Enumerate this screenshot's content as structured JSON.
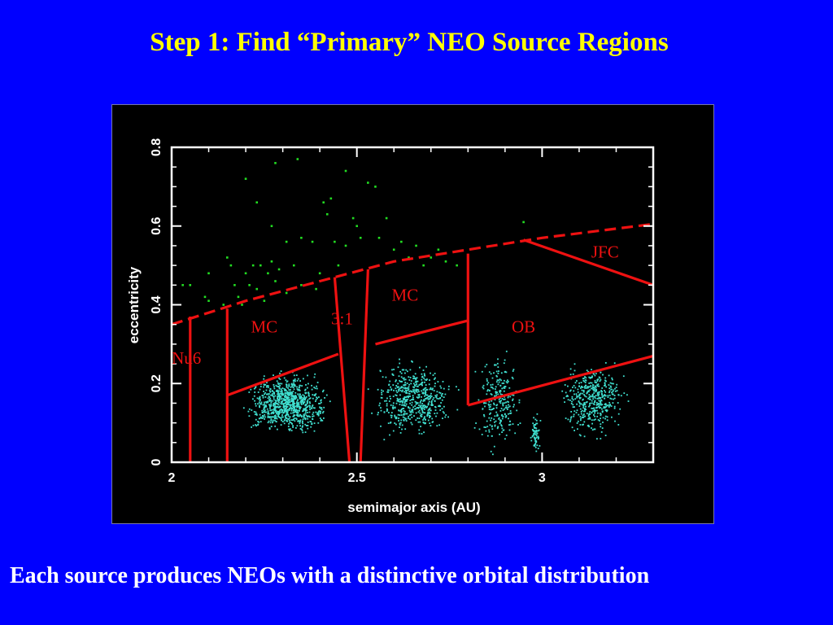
{
  "slide": {
    "title": "Step 1: Find “Primary” NEO Source Regions",
    "caption": "Each source produces NEOs with a distinctive orbital distribution"
  },
  "chart_data": {
    "type": "scatter",
    "xlabel": "semimajor axis (AU)",
    "ylabel": "eccentricity",
    "xlim": [
      2.0,
      3.3
    ],
    "ylim": [
      0,
      0.8
    ],
    "x_ticks": [
      2,
      2.5,
      3
    ],
    "x_tick_labels": [
      "2",
      "2.5",
      "3"
    ],
    "y_ticks": [
      0,
      0.2,
      0.4,
      0.6,
      0.8
    ],
    "y_tick_labels": [
      "0",
      "0.2",
      "0.4",
      "0.6",
      "0.8"
    ],
    "grid": false,
    "colors": {
      "main_belt_points": "#40e0d0",
      "neo_points": "#22dd22",
      "boundaries": "#ee1111",
      "region_labels": "#ee1111",
      "axes": "#ffffff"
    },
    "series": [
      {
        "color": "#40e0d0",
        "description_points": "main belt asteroids (dense cloud)",
        "clusters": [
          {
            "x": [
              2.16,
              2.46
            ],
            "y": [
              0.06,
              0.24
            ],
            "n": 900
          },
          {
            "x": [
              2.5,
              2.8
            ],
            "y": [
              0.05,
              0.28
            ],
            "n": 550
          },
          {
            "x": [
              2.8,
              2.96
            ],
            "y": [
              0.0,
              0.32
            ],
            "n": 250
          },
          {
            "x": [
              2.96,
              3.0
            ],
            "y": [
              0.02,
              0.13
            ],
            "n": 70
          },
          {
            "x": [
              3.02,
              3.25
            ],
            "y": [
              0.05,
              0.28
            ],
            "n": 450
          }
        ]
      },
      {
        "color": "#22dd22",
        "points": [
          [
            2.03,
            0.45
          ],
          [
            2.05,
            0.45
          ],
          [
            2.09,
            0.42
          ],
          [
            2.1,
            0.48
          ],
          [
            2.1,
            0.41
          ],
          [
            2.14,
            0.4
          ],
          [
            2.15,
            0.52
          ],
          [
            2.16,
            0.5
          ],
          [
            2.17,
            0.45
          ],
          [
            2.18,
            0.42
          ],
          [
            2.19,
            0.4
          ],
          [
            2.2,
            0.72
          ],
          [
            2.2,
            0.48
          ],
          [
            2.21,
            0.45
          ],
          [
            2.22,
            0.5
          ],
          [
            2.23,
            0.66
          ],
          [
            2.23,
            0.44
          ],
          [
            2.24,
            0.5
          ],
          [
            2.25,
            0.41
          ],
          [
            2.26,
            0.48
          ],
          [
            2.27,
            0.6
          ],
          [
            2.27,
            0.51
          ],
          [
            2.28,
            0.46
          ],
          [
            2.28,
            0.76
          ],
          [
            2.29,
            0.49
          ],
          [
            2.31,
            0.43
          ],
          [
            2.31,
            0.56
          ],
          [
            2.33,
            0.5
          ],
          [
            2.34,
            0.77
          ],
          [
            2.35,
            0.57
          ],
          [
            2.35,
            0.45
          ],
          [
            2.38,
            0.56
          ],
          [
            2.39,
            0.44
          ],
          [
            2.4,
            0.48
          ],
          [
            2.41,
            0.66
          ],
          [
            2.42,
            0.63
          ],
          [
            2.43,
            0.67
          ],
          [
            2.44,
            0.56
          ],
          [
            2.45,
            0.5
          ],
          [
            2.47,
            0.74
          ],
          [
            2.47,
            0.55
          ],
          [
            2.49,
            0.62
          ],
          [
            2.5,
            0.6
          ],
          [
            2.51,
            0.57
          ],
          [
            2.53,
            0.71
          ],
          [
            2.55,
            0.7
          ],
          [
            2.56,
            0.57
          ],
          [
            2.58,
            0.62
          ],
          [
            2.6,
            0.54
          ],
          [
            2.62,
            0.56
          ],
          [
            2.64,
            0.52
          ],
          [
            2.66,
            0.55
          ],
          [
            2.68,
            0.5
          ],
          [
            2.7,
            0.52
          ],
          [
            2.72,
            0.54
          ],
          [
            2.74,
            0.51
          ],
          [
            2.77,
            0.5
          ],
          [
            2.95,
            0.61
          ]
        ]
      }
    ],
    "region_boundaries": [
      {
        "name": "neo_limit_dashed",
        "style": "dashed",
        "points": [
          [
            2.0,
            0.35
          ],
          [
            2.2,
            0.41
          ],
          [
            2.4,
            0.46
          ],
          [
            2.6,
            0.51
          ],
          [
            2.8,
            0.54
          ],
          [
            3.0,
            0.57
          ],
          [
            3.3,
            0.605
          ]
        ]
      },
      {
        "points": [
          [
            2.05,
            0
          ],
          [
            2.05,
            0.37
          ]
        ]
      },
      {
        "points": [
          [
            2.15,
            0
          ],
          [
            2.15,
            0.39
          ]
        ]
      },
      {
        "points": [
          [
            2.15,
            0.17
          ],
          [
            2.45,
            0.275
          ]
        ]
      },
      {
        "points": [
          [
            2.44,
            0.47
          ],
          [
            2.48,
            0
          ]
        ]
      },
      {
        "points": [
          [
            2.53,
            0.49
          ],
          [
            2.51,
            0
          ]
        ]
      },
      {
        "points": [
          [
            2.55,
            0.3
          ],
          [
            2.8,
            0.36
          ]
        ]
      },
      {
        "points": [
          [
            2.8,
            0.53
          ],
          [
            2.8,
            0.145
          ]
        ]
      },
      {
        "points": [
          [
            2.8,
            0.145
          ],
          [
            3.3,
            0.27
          ]
        ]
      },
      {
        "points": [
          [
            2.95,
            0.565
          ],
          [
            3.3,
            0.45
          ]
        ]
      }
    ],
    "annotations": [
      {
        "text": "JFC",
        "x": 3.17,
        "y": 0.52
      },
      {
        "text": "MC",
        "x": 2.63,
        "y": 0.41
      },
      {
        "text": "3:1",
        "x": 2.46,
        "y": 0.35
      },
      {
        "text": "MC",
        "x": 2.25,
        "y": 0.33
      },
      {
        "text": "OB",
        "x": 2.95,
        "y": 0.33
      },
      {
        "text": "Nu6",
        "x": 2.04,
        "y": 0.25
      }
    ]
  }
}
